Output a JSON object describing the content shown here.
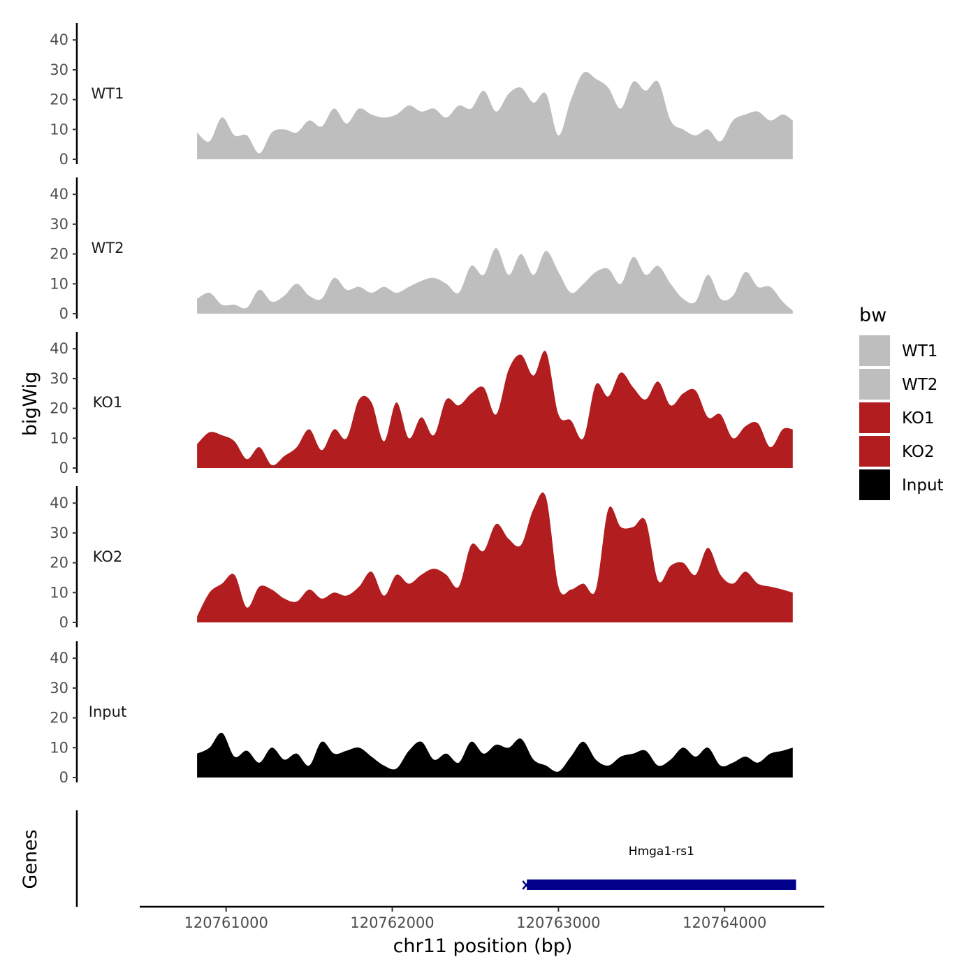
{
  "chart_data": {
    "type": "area",
    "x_axis": {
      "label": "chr11 position (bp)",
      "ticks": [
        120761000,
        120762000,
        120763000,
        120764000
      ],
      "tick_labels": [
        "120761000",
        "120762000",
        "120763000",
        "120764000"
      ],
      "range": [
        120760480,
        120764600
      ]
    },
    "y_axis": {
      "label": "bigWig",
      "range": [
        0,
        45
      ],
      "ticks": [
        0,
        10,
        20,
        30,
        40
      ],
      "tick_labels": [
        "0",
        "10",
        "20",
        "30",
        "40"
      ]
    },
    "grid": false,
    "legend": {
      "title": "bw",
      "position": "right",
      "entries": [
        {
          "label": "WT1",
          "color": "#BEBEBE"
        },
        {
          "label": "WT2",
          "color": "#BEBEBE"
        },
        {
          "label": "KO1",
          "color": "#B21D1F"
        },
        {
          "label": "KO2",
          "color": "#B21D1F"
        },
        {
          "label": "Input",
          "color": "#000000"
        }
      ]
    },
    "x": [
      120760825,
      120760900,
      120760975,
      120761050,
      120761125,
      120761200,
      120761275,
      120761350,
      120761425,
      120761500,
      120761575,
      120761650,
      120761725,
      120761800,
      120761875,
      120761950,
      120762025,
      120762100,
      120762175,
      120762250,
      120762325,
      120762400,
      120762475,
      120762550,
      120762625,
      120762700,
      120762775,
      120762850,
      120762925,
      120763000,
      120763075,
      120763150,
      120763225,
      120763300,
      120763375,
      120763450,
      120763525,
      120763600,
      120763675,
      120763750,
      120763825,
      120763900,
      120763975,
      120764050,
      120764125,
      120764200,
      120764275,
      120764350,
      120764410
    ],
    "series": [
      {
        "name": "WT1",
        "color": "#BEBEBE",
        "values": [
          9,
          6,
          14,
          8,
          8,
          2,
          9,
          10,
          9,
          13,
          11,
          17,
          12,
          17,
          15,
          14,
          15,
          18,
          16,
          17,
          14,
          18,
          17,
          23,
          16,
          22,
          24,
          19,
          22,
          8,
          20,
          29,
          27,
          24,
          17,
          26,
          23,
          26,
          13,
          10,
          8,
          10,
          6,
          13,
          15,
          16,
          13,
          15,
          13
        ]
      },
      {
        "name": "WT2",
        "color": "#BEBEBE",
        "values": [
          5,
          7,
          3,
          3,
          2,
          8,
          4,
          6,
          10,
          6,
          5,
          12,
          8,
          9,
          7,
          9,
          7,
          9,
          11,
          12,
          10,
          7,
          16,
          13,
          22,
          13,
          20,
          13,
          21,
          14,
          7,
          10,
          14,
          15,
          10,
          19,
          13,
          16,
          10,
          5,
          4,
          13,
          5,
          6,
          14,
          9,
          9,
          4,
          1
        ]
      },
      {
        "name": "KO1",
        "color": "#B21D1F",
        "values": [
          8,
          12,
          11,
          9,
          3,
          7,
          1,
          4,
          7,
          13,
          6,
          13,
          10,
          23,
          22,
          9,
          22,
          10,
          17,
          11,
          23,
          21,
          25,
          27,
          18,
          33,
          38,
          31,
          39,
          18,
          16,
          10,
          28,
          24,
          32,
          27,
          23,
          29,
          21,
          25,
          26,
          17,
          18,
          10,
          14,
          15,
          7,
          13,
          13
        ]
      },
      {
        "name": "KO2",
        "color": "#B21D1F",
        "values": [
          2,
          10,
          13,
          16,
          5,
          12,
          11,
          8,
          7,
          11,
          8,
          10,
          9,
          12,
          17,
          9,
          16,
          13,
          16,
          18,
          16,
          12,
          26,
          24,
          33,
          28,
          26,
          38,
          42,
          12,
          11,
          13,
          11,
          38,
          32,
          32,
          34,
          14,
          19,
          20,
          16,
          25,
          16,
          13,
          17,
          13,
          12,
          11,
          10
        ]
      },
      {
        "name": "Input",
        "color": "#000000",
        "values": [
          8,
          10,
          15,
          7,
          9,
          5,
          10,
          6,
          8,
          4,
          12,
          8,
          9,
          10,
          7,
          4,
          3,
          9,
          12,
          6,
          8,
          5,
          12,
          8,
          11,
          10,
          13,
          6,
          4,
          2,
          7,
          12,
          6,
          4,
          7,
          8,
          9,
          4,
          6,
          10,
          7,
          10,
          4,
          5,
          7,
          5,
          8,
          9,
          10
        ]
      }
    ],
    "genes_track": {
      "label": "Genes",
      "genes": [
        {
          "name": "Hmga1-rs1",
          "start": 120762810,
          "end": 120764430,
          "strand": "-",
          "color": "#00008B"
        }
      ]
    }
  }
}
